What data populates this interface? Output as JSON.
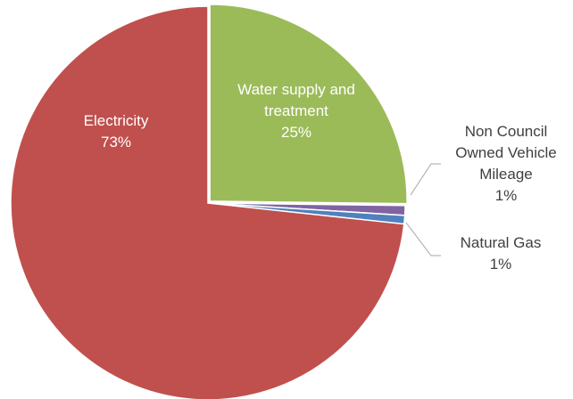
{
  "chart_data": {
    "type": "pie",
    "slices": [
      {
        "label": [
          "Water supply and",
          "treatment"
        ],
        "percent_label": "25%",
        "value": 25.2,
        "color": "#9bbb59",
        "text_color": "#ffffff"
      },
      {
        "label": [
          "Non Council",
          "Owned Vehicle",
          "Mileage"
        ],
        "percent_label": "1%",
        "value": 0.8,
        "color": "#8064a2",
        "text_color": "#404040"
      },
      {
        "label": [
          "Natural Gas"
        ],
        "percent_label": "1%",
        "value": 0.7,
        "color": "#4f81bd",
        "text_color": "#404040"
      },
      {
        "label": [
          "Electricity"
        ],
        "percent_label": "73%",
        "value": 73.3,
        "color": "#c0504d",
        "text_color": "#ffffff"
      }
    ],
    "start_angle_deg": 0,
    "direction": "clockwise",
    "legend": "none"
  }
}
